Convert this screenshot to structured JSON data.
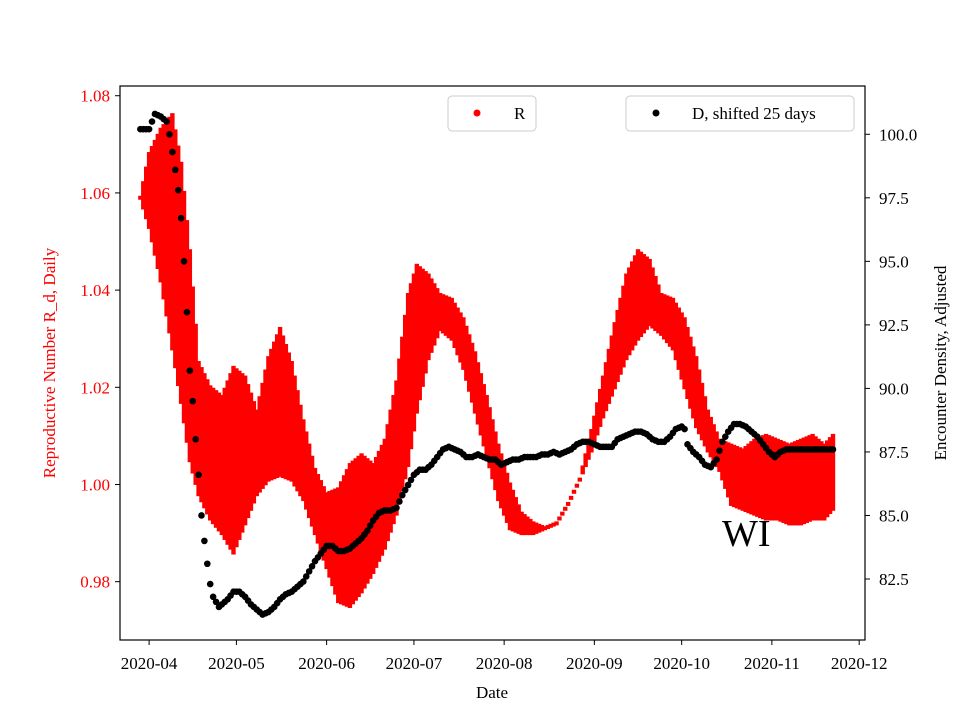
{
  "chart_data": {
    "type": "scatter",
    "title": "",
    "xlabel": "Date",
    "ylabel_left": "Reproductive Number R_d, Daily",
    "ylabel_right": "Encounter Density, Adjusted",
    "annotation": "WI",
    "x_range": [
      "2020-03-22",
      "2020-12-03"
    ],
    "x_ticks": [
      "2020-04",
      "2020-05",
      "2020-06",
      "2020-07",
      "2020-08",
      "2020-09",
      "2020-10",
      "2020-11",
      "2020-12"
    ],
    "y_left_range": [
      0.968,
      1.082
    ],
    "y_left_ticks": [
      "0.98",
      "1.00",
      "1.02",
      "1.04",
      "1.06",
      "1.08"
    ],
    "y_right_range": [
      80.1,
      101.9
    ],
    "y_right_ticks": [
      "82.5",
      "85.0",
      "87.5",
      "90.0",
      "92.5",
      "95.0",
      "97.5",
      "100.0"
    ],
    "colors": {
      "R": "#ff0000",
      "D": "#000000",
      "left_axis": "#ff0000",
      "right_axis": "#000000"
    },
    "grid": false,
    "legend_left": {
      "placement": "top-center",
      "label": "R"
    },
    "legend_right": {
      "placement": "top-right",
      "label": "D, shifted 25 days"
    },
    "series_R": {
      "name": "R",
      "axis": "left",
      "points": [
        [
          "2020-03-29",
          1.059,
          1.059
        ],
        [
          "2020-04-01",
          1.053,
          1.068
        ],
        [
          "2020-04-05",
          1.042,
          1.073
        ],
        [
          "2020-04-09",
          1.028,
          1.076
        ],
        [
          "2020-04-12",
          1.017,
          1.066
        ],
        [
          "2020-04-15",
          1.005,
          1.048
        ],
        [
          "2020-04-18",
          0.998,
          1.025
        ],
        [
          "2020-04-22",
          0.993,
          1.02
        ],
        [
          "2020-04-26",
          0.99,
          1.018
        ],
        [
          "2020-04-30",
          0.986,
          1.024
        ],
        [
          "2020-05-04",
          0.992,
          1.022
        ],
        [
          "2020-05-08",
          0.998,
          1.015
        ],
        [
          "2020-05-12",
          1.001,
          1.026
        ],
        [
          "2020-05-16",
          1.002,
          1.032
        ],
        [
          "2020-05-20",
          1.001,
          1.025
        ],
        [
          "2020-05-24",
          0.997,
          1.013
        ],
        [
          "2020-05-28",
          0.99,
          1.003
        ],
        [
          "2020-06-01",
          0.983,
          0.998
        ],
        [
          "2020-06-05",
          0.976,
          0.999
        ],
        [
          "2020-06-09",
          0.975,
          1.004
        ],
        [
          "2020-06-13",
          0.978,
          1.006
        ],
        [
          "2020-06-17",
          0.982,
          1.004
        ],
        [
          "2020-06-21",
          0.987,
          1.009
        ],
        [
          "2020-06-25",
          0.994,
          1.021
        ],
        [
          "2020-06-29",
          1.004,
          1.039
        ],
        [
          "2020-07-02",
          1.015,
          1.045
        ],
        [
          "2020-07-06",
          1.026,
          1.043
        ],
        [
          "2020-07-10",
          1.032,
          1.039
        ],
        [
          "2020-07-14",
          1.03,
          1.038
        ],
        [
          "2020-07-18",
          1.024,
          1.034
        ],
        [
          "2020-07-22",
          1.015,
          1.027
        ],
        [
          "2020-07-26",
          1.006,
          1.018
        ],
        [
          "2020-07-30",
          0.997,
          1.008
        ],
        [
          "2020-08-03",
          0.991,
          1.0
        ],
        [
          "2020-08-07",
          0.99,
          0.994
        ],
        [
          "2020-08-11",
          0.99,
          0.992
        ],
        [
          "2020-08-15",
          0.991,
          0.991
        ],
        [
          "2020-08-19",
          0.992,
          0.992
        ],
        [
          "2020-08-23",
          0.996,
          0.996
        ],
        [
          "2020-08-27",
          1.001,
          1.001
        ],
        [
          "2020-08-31",
          1.007,
          1.011
        ],
        [
          "2020-09-04",
          1.014,
          1.022
        ],
        [
          "2020-09-08",
          1.02,
          1.033
        ],
        [
          "2020-09-12",
          1.026,
          1.043
        ],
        [
          "2020-09-16",
          1.03,
          1.048
        ],
        [
          "2020-09-20",
          1.033,
          1.046
        ],
        [
          "2020-09-24",
          1.031,
          1.039
        ],
        [
          "2020-09-28",
          1.028,
          1.038
        ],
        [
          "2020-10-02",
          1.02,
          1.034
        ],
        [
          "2020-10-06",
          1.012,
          1.026
        ],
        [
          "2020-10-10",
          1.007,
          1.015
        ],
        [
          "2020-10-14",
          1.003,
          1.009
        ],
        [
          "2020-10-18",
          0.996,
          1.008
        ],
        [
          "2020-10-22",
          0.995,
          1.007
        ],
        [
          "2020-10-26",
          0.994,
          1.009
        ],
        [
          "2020-10-30",
          0.993,
          1.01
        ],
        [
          "2020-11-03",
          0.993,
          1.009
        ],
        [
          "2020-11-07",
          0.992,
          1.008
        ],
        [
          "2020-11-11",
          0.992,
          1.009
        ],
        [
          "2020-11-15",
          0.993,
          1.01
        ],
        [
          "2020-11-19",
          0.993,
          1.008
        ],
        [
          "2020-11-22",
          0.995,
          1.01
        ]
      ]
    },
    "series_D": {
      "name": "D, shifted 25 days",
      "axis": "right",
      "points": [
        [
          "2020-03-29",
          100.2
        ],
        [
          "2020-04-01",
          100.2
        ],
        [
          "2020-04-03",
          100.8
        ],
        [
          "2020-04-05",
          100.7
        ],
        [
          "2020-04-07",
          100.5
        ],
        [
          "2020-04-08",
          100.0
        ],
        [
          "2020-04-09",
          99.3
        ],
        [
          "2020-04-10",
          98.6
        ],
        [
          "2020-04-11",
          97.8
        ],
        [
          "2020-04-12",
          96.7
        ],
        [
          "2020-04-13",
          95.0
        ],
        [
          "2020-04-14",
          93.0
        ],
        [
          "2020-04-15",
          90.7
        ],
        [
          "2020-04-16",
          89.5
        ],
        [
          "2020-04-17",
          88.0
        ],
        [
          "2020-04-18",
          86.6
        ],
        [
          "2020-04-19",
          85.0
        ],
        [
          "2020-04-20",
          84.0
        ],
        [
          "2020-04-21",
          83.1
        ],
        [
          "2020-04-22",
          82.3
        ],
        [
          "2020-04-23",
          81.8
        ],
        [
          "2020-04-24",
          81.6
        ],
        [
          "2020-04-25",
          81.4
        ],
        [
          "2020-04-26",
          81.5
        ],
        [
          "2020-04-28",
          81.7
        ],
        [
          "2020-04-30",
          82.0
        ],
        [
          "2020-05-02",
          82.0
        ],
        [
          "2020-05-04",
          81.8
        ],
        [
          "2020-05-06",
          81.5
        ],
        [
          "2020-05-08",
          81.3
        ],
        [
          "2020-05-10",
          81.1
        ],
        [
          "2020-05-12",
          81.2
        ],
        [
          "2020-05-14",
          81.4
        ],
        [
          "2020-05-16",
          81.7
        ],
        [
          "2020-05-18",
          81.9
        ],
        [
          "2020-05-20",
          82.0
        ],
        [
          "2020-05-22",
          82.2
        ],
        [
          "2020-05-24",
          82.4
        ],
        [
          "2020-05-26",
          82.8
        ],
        [
          "2020-05-28",
          83.2
        ],
        [
          "2020-05-30",
          83.5
        ],
        [
          "2020-06-01",
          83.8
        ],
        [
          "2020-06-03",
          83.8
        ],
        [
          "2020-06-05",
          83.6
        ],
        [
          "2020-06-07",
          83.6
        ],
        [
          "2020-06-09",
          83.7
        ],
        [
          "2020-06-11",
          83.9
        ],
        [
          "2020-06-13",
          84.1
        ],
        [
          "2020-06-15",
          84.4
        ],
        [
          "2020-06-17",
          84.8
        ],
        [
          "2020-06-19",
          85.1
        ],
        [
          "2020-06-21",
          85.2
        ],
        [
          "2020-06-23",
          85.2
        ],
        [
          "2020-06-25",
          85.3
        ],
        [
          "2020-06-27",
          85.8
        ],
        [
          "2020-06-29",
          86.2
        ],
        [
          "2020-07-01",
          86.6
        ],
        [
          "2020-07-03",
          86.8
        ],
        [
          "2020-07-05",
          86.8
        ],
        [
          "2020-07-07",
          87.0
        ],
        [
          "2020-07-09",
          87.3
        ],
        [
          "2020-07-11",
          87.6
        ],
        [
          "2020-07-13",
          87.7
        ],
        [
          "2020-07-15",
          87.6
        ],
        [
          "2020-07-17",
          87.5
        ],
        [
          "2020-07-19",
          87.3
        ],
        [
          "2020-07-21",
          87.3
        ],
        [
          "2020-07-23",
          87.4
        ],
        [
          "2020-07-25",
          87.3
        ],
        [
          "2020-07-27",
          87.2
        ],
        [
          "2020-07-29",
          87.2
        ],
        [
          "2020-07-31",
          87.0
        ],
        [
          "2020-08-02",
          87.1
        ],
        [
          "2020-08-04",
          87.2
        ],
        [
          "2020-08-06",
          87.2
        ],
        [
          "2020-08-08",
          87.3
        ],
        [
          "2020-08-10",
          87.3
        ],
        [
          "2020-08-12",
          87.3
        ],
        [
          "2020-08-14",
          87.4
        ],
        [
          "2020-08-16",
          87.4
        ],
        [
          "2020-08-18",
          87.5
        ],
        [
          "2020-08-20",
          87.4
        ],
        [
          "2020-08-22",
          87.5
        ],
        [
          "2020-08-24",
          87.6
        ],
        [
          "2020-08-26",
          87.8
        ],
        [
          "2020-08-28",
          87.9
        ],
        [
          "2020-08-30",
          87.9
        ],
        [
          "2020-09-01",
          87.8
        ],
        [
          "2020-09-03",
          87.7
        ],
        [
          "2020-09-05",
          87.7
        ],
        [
          "2020-09-07",
          87.7
        ],
        [
          "2020-09-09",
          88.0
        ],
        [
          "2020-09-11",
          88.1
        ],
        [
          "2020-09-13",
          88.2
        ],
        [
          "2020-09-15",
          88.3
        ],
        [
          "2020-09-17",
          88.3
        ],
        [
          "2020-09-19",
          88.2
        ],
        [
          "2020-09-21",
          88.0
        ],
        [
          "2020-09-23",
          87.9
        ],
        [
          "2020-09-25",
          87.9
        ],
        [
          "2020-09-27",
          88.1
        ],
        [
          "2020-09-29",
          88.4
        ],
        [
          "2020-10-01",
          88.5
        ],
        [
          "2020-10-02",
          88.4
        ],
        [
          "2020-10-03",
          87.8
        ],
        [
          "2020-10-05",
          87.5
        ],
        [
          "2020-10-07",
          87.3
        ],
        [
          "2020-10-09",
          87.0
        ],
        [
          "2020-10-11",
          86.9
        ],
        [
          "2020-10-13",
          87.2
        ],
        [
          "2020-10-15",
          87.9
        ],
        [
          "2020-10-17",
          88.3
        ],
        [
          "2020-10-19",
          88.6
        ],
        [
          "2020-10-21",
          88.6
        ],
        [
          "2020-10-23",
          88.5
        ],
        [
          "2020-10-25",
          88.3
        ],
        [
          "2020-10-27",
          88.1
        ],
        [
          "2020-10-29",
          87.8
        ],
        [
          "2020-10-31",
          87.5
        ],
        [
          "2020-11-02",
          87.3
        ],
        [
          "2020-11-04",
          87.5
        ],
        [
          "2020-11-06",
          87.6
        ],
        [
          "2020-11-08",
          87.6
        ],
        [
          "2020-11-10",
          87.6
        ],
        [
          "2020-11-12",
          87.6
        ],
        [
          "2020-11-14",
          87.6
        ],
        [
          "2020-11-16",
          87.6
        ],
        [
          "2020-11-18",
          87.6
        ],
        [
          "2020-11-20",
          87.6
        ],
        [
          "2020-11-22",
          87.6
        ]
      ]
    }
  }
}
